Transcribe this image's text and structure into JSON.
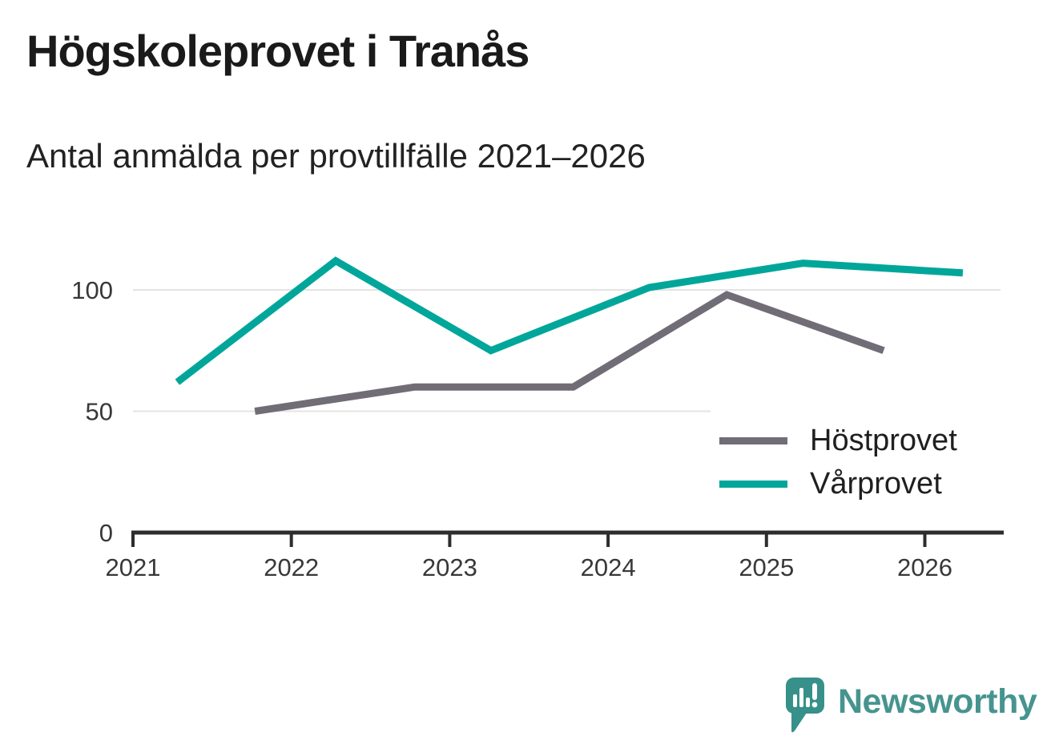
{
  "title": "Högskoleprovet i Tranås",
  "subtitle": "Antal anmälda per provtillfälle 2021–2026",
  "chart_data": {
    "type": "line",
    "title": "Högskoleprovet i Tranås",
    "subtitle": "Antal anmälda per provtillfälle 2021–2026",
    "x_axis": {
      "min": 2021,
      "max": 2026.5,
      "ticks": [
        2021,
        2022,
        2023,
        2024,
        2025,
        2026
      ],
      "grid": false
    },
    "y_axis": {
      "min": 0,
      "max": 120,
      "ticks": [
        0,
        50,
        100
      ],
      "grid": true
    },
    "legend_position": "inside-right",
    "series": [
      {
        "name": "Höstprovet",
        "color": "#716d77",
        "points": [
          {
            "x": 2021.77,
            "year": 2021,
            "value": 50
          },
          {
            "x": 2022.78,
            "year": 2022,
            "value": 60
          },
          {
            "x": 2023.78,
            "year": 2023,
            "value": 60
          },
          {
            "x": 2024.75,
            "year": 2024,
            "value": 98
          },
          {
            "x": 2025.74,
            "year": 2025,
            "value": 75
          }
        ]
      },
      {
        "name": "Vårprovet",
        "color": "#00a69a",
        "points": [
          {
            "x": 2021.28,
            "year": 2021,
            "value": 62
          },
          {
            "x": 2022.28,
            "year": 2022,
            "value": 112
          },
          {
            "x": 2023.26,
            "year": 2023,
            "value": 75
          },
          {
            "x": 2024.26,
            "year": 2024,
            "value": 101
          },
          {
            "x": 2025.23,
            "year": 2025,
            "value": 111
          },
          {
            "x": 2026.24,
            "year": 2026,
            "value": 107
          }
        ]
      }
    ]
  },
  "logo": {
    "brand": "Newsworthy",
    "text_color": "#46948f",
    "bubble_color": "#37908a"
  }
}
